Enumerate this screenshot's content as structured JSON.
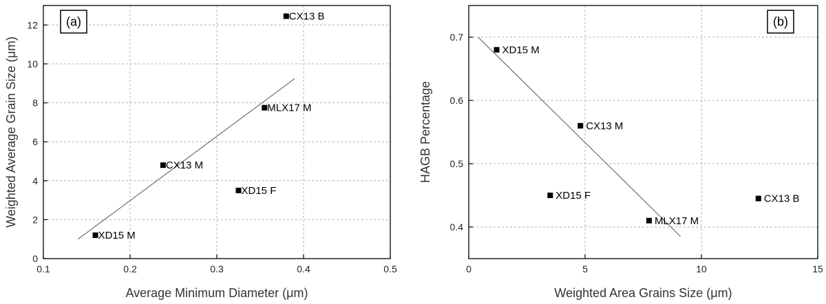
{
  "chart_data": [
    {
      "type": "scatter",
      "panel_tag": "(a)",
      "xlabel": "Average Minimum Diameter (μm)",
      "ylabel": "Weighted Average Grain Size (μm)",
      "xlim": [
        0.1,
        0.5
      ],
      "ylim": [
        0,
        13
      ],
      "xticks": [
        "0.1",
        "0.2",
        "0.3",
        "0.4",
        "0.5"
      ],
      "yticks": [
        "0",
        "2",
        "4",
        "6",
        "8",
        "10",
        "12"
      ],
      "xtick_values": [
        0.1,
        0.2,
        0.3,
        0.4,
        0.5
      ],
      "ytick_values": [
        0,
        2,
        4,
        6,
        8,
        10,
        12
      ],
      "grid": true,
      "points": [
        {
          "label": "XD15 M",
          "x": 0.16,
          "y": 1.2
        },
        {
          "label": "CX13 M",
          "x": 0.238,
          "y": 4.8
        },
        {
          "label": "XD15 F",
          "x": 0.325,
          "y": 3.5
        },
        {
          "label": "MLX17 M",
          "x": 0.355,
          "y": 7.75
        },
        {
          "label": "CX13 B",
          "x": 0.38,
          "y": 12.45
        }
      ],
      "fit_line": {
        "x": [
          0.14,
          0.39
        ],
        "y": [
          1.0,
          9.25
        ]
      }
    },
    {
      "type": "scatter",
      "panel_tag": "(b)",
      "xlabel": "Weighted Area Grains Size (μm)",
      "ylabel": "HAGB Percentage",
      "xlim": [
        0,
        15
      ],
      "ylim": [
        0.35,
        0.75
      ],
      "xticks": [
        "0",
        "5",
        "10",
        "15"
      ],
      "yticks": [
        "0.4",
        "0.5",
        "0.6",
        "0.7"
      ],
      "xtick_values": [
        0,
        5,
        10,
        15
      ],
      "ytick_values": [
        0.4,
        0.5,
        0.6,
        0.7
      ],
      "grid": true,
      "points": [
        {
          "label": "XD15 M",
          "x": 1.2,
          "y": 0.68
        },
        {
          "label": "CX13 M",
          "x": 4.8,
          "y": 0.56
        },
        {
          "label": "XD15 F",
          "x": 3.5,
          "y": 0.45
        },
        {
          "label": "MLX17 M",
          "x": 7.75,
          "y": 0.41
        },
        {
          "label": "CX13 B",
          "x": 12.45,
          "y": 0.445
        }
      ],
      "fit_line": {
        "x": [
          0.4,
          9.1
        ],
        "y": [
          0.7,
          0.385
        ]
      }
    }
  ]
}
